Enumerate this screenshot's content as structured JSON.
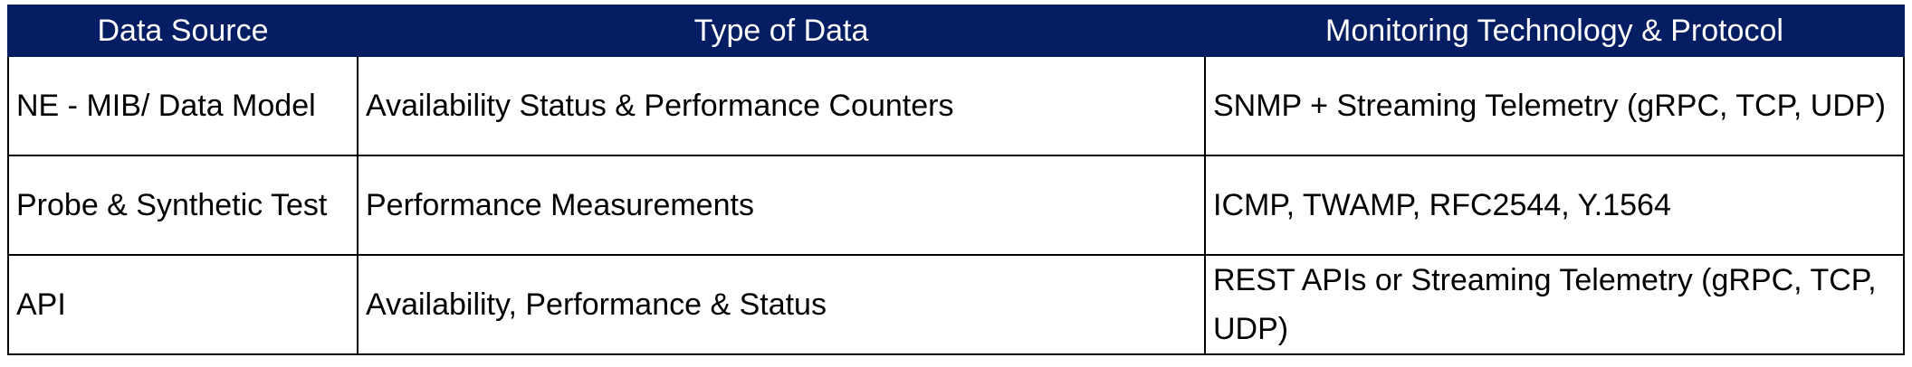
{
  "table": {
    "headers": [
      "Data Source",
      "Type of Data",
      "Monitoring Technology & Protocol"
    ],
    "rows": [
      [
        "NE - MIB/ Data Model",
        "Availability Status & Performance Counters",
        "SNMP + Streaming Telemetry (gRPC, TCP, UDP)"
      ],
      [
        "Probe & Synthetic Test",
        "Performance Measurements",
        "ICMP, TWAMP, RFC2544, Y.1564"
      ],
      [
        "API",
        "Availability, Performance & Status",
        "REST APIs or Streaming Telemetry (gRPC, TCP, UDP)"
      ]
    ]
  },
  "colors": {
    "header_bg": "#041d63",
    "header_text": "#ffffff",
    "border": "#000000"
  }
}
